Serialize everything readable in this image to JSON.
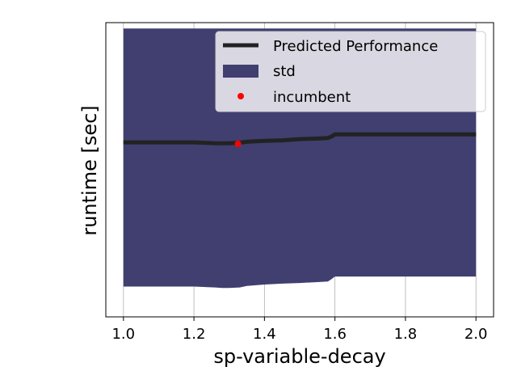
{
  "chart_data": {
    "type": "area",
    "title": "",
    "xlabel": "sp-variable-decay",
    "ylabel": "runtime [sec]",
    "xlim": [
      0.95,
      2.05
    ],
    "ylim": [
      0,
      100
    ],
    "x_ticks": [
      "1.0",
      "1.2",
      "1.4",
      "1.6",
      "1.8",
      "2.0"
    ],
    "x_tick_values": [
      1.0,
      1.2,
      1.4,
      1.6,
      1.8,
      2.0
    ],
    "grid": "x-only",
    "legend": {
      "position": "top-right",
      "entries": [
        "Predicted Performance",
        "std",
        "incumbent"
      ]
    },
    "series": [
      {
        "name": "Predicted Performance",
        "color": "#222222",
        "x": [
          1.0,
          1.1,
          1.2,
          1.26,
          1.28,
          1.3,
          1.33,
          1.35,
          1.4,
          1.45,
          1.5,
          1.55,
          1.58,
          1.59,
          1.6,
          1.7,
          1.8,
          1.9,
          2.0
        ],
        "y": [
          59.3,
          59.3,
          59.3,
          59.0,
          59.0,
          59.0,
          59.2,
          59.5,
          59.8,
          60.0,
          60.4,
          60.6,
          60.8,
          61.3,
          62.0,
          62.0,
          62.0,
          62.0,
          62.0
        ]
      },
      {
        "name": "std",
        "color": "#403f70",
        "x": [
          1.0,
          1.1,
          1.2,
          1.26,
          1.28,
          1.3,
          1.33,
          1.35,
          1.4,
          1.45,
          1.5,
          1.55,
          1.58,
          1.59,
          1.6,
          1.7,
          1.8,
          1.9,
          2.0
        ],
        "upper": [
          98.0,
          98.0,
          98.0,
          98.0,
          98.0,
          98.0,
          98.0,
          98.0,
          98.0,
          98.0,
          98.0,
          98.0,
          98.0,
          98.0,
          98.0,
          98.0,
          98.0,
          98.0,
          98.0
        ],
        "lower": [
          10.3,
          10.3,
          10.3,
          10.0,
          9.8,
          9.8,
          10.0,
          10.5,
          11.0,
          11.3,
          11.5,
          11.8,
          12.0,
          12.8,
          13.7,
          13.7,
          13.7,
          13.7,
          13.7
        ]
      }
    ],
    "incumbent": {
      "name": "incumbent",
      "x": 1.325,
      "y": 58.8,
      "color": "#ff0000"
    }
  }
}
